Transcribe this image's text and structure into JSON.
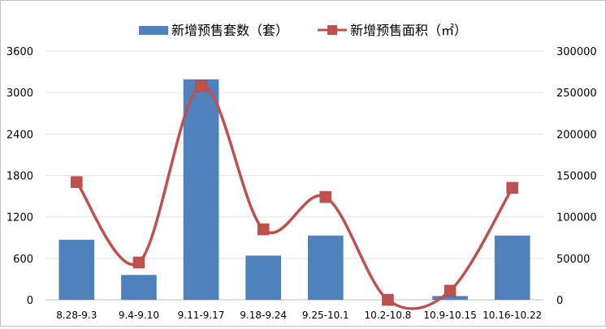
{
  "chart_data": {
    "type": "bar",
    "categories": [
      "8.28-9.3",
      "9.4-9.10",
      "9.11-9.17",
      "9.18-9.24",
      "9.25-10.1",
      "10.2-10.8",
      "10.9-10.15",
      "10.16-10.22"
    ],
    "series": [
      {
        "name": "新增预售套数（套）",
        "type": "bar",
        "axis": "left",
        "color": "#4f81bd",
        "values": [
          870,
          360,
          3190,
          640,
          930,
          0,
          55,
          930
        ]
      },
      {
        "name": "新增预售面积（㎡）",
        "type": "line",
        "axis": "right",
        "color": "#c0504d",
        "values": [
          142000,
          45000,
          258000,
          85000,
          124000,
          0,
          11000,
          135000
        ]
      }
    ],
    "left_axis": {
      "min": 0,
      "max": 3600,
      "ticks": [
        "0",
        "600",
        "1200",
        "1800",
        "2400",
        "3000",
        "3600"
      ]
    },
    "right_axis": {
      "min": 0,
      "max": 300000,
      "ticks": [
        "0",
        "50000",
        "100000",
        "150000",
        "200000",
        "250000",
        "300000"
      ]
    },
    "grid": true,
    "legend_position": "top"
  }
}
